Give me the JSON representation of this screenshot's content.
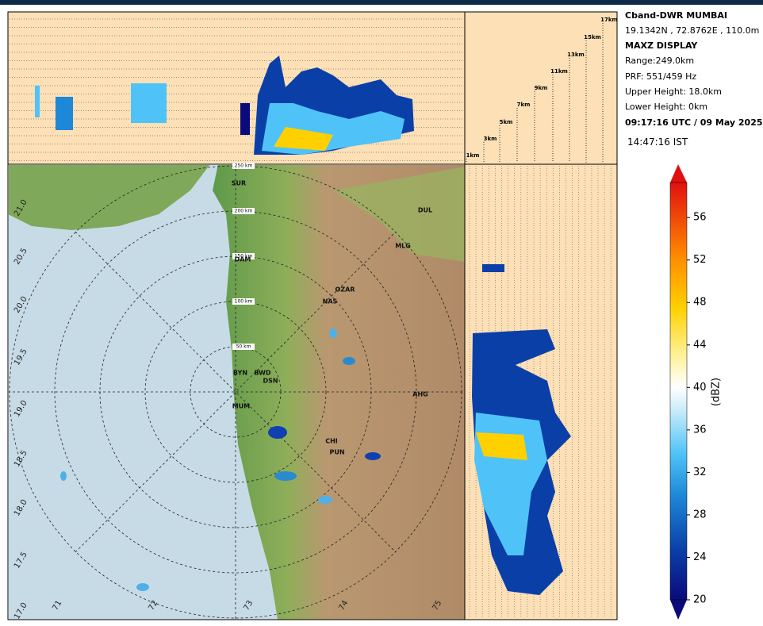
{
  "header": {
    "station": "Cband-DWR MUMBAI",
    "location": "19.1342N , 72.8762E , 110.0m",
    "product": "MAXZ DISPLAY",
    "range": "Range:249.0km",
    "prf": "PRF: 551/459 Hz",
    "upper": "Upper Height: 18.0km",
    "lower": "Lower Height: 0km",
    "utc": "09:17:16 UTC / 09 May 2025",
    "ist": "14:47:16  IST"
  },
  "colorbar": {
    "label": "(dBZ)",
    "lim": [
      20,
      59.3
    ],
    "ticks": [
      20,
      24,
      28,
      32,
      36,
      40,
      44,
      48,
      52,
      56
    ]
  },
  "heights": [
    "1km",
    "3km",
    "5km",
    "7km",
    "9km",
    "11km",
    "13km",
    "15km",
    "17km"
  ],
  "rings": [
    "50 km",
    "100 km",
    "150 km",
    "200 km",
    "250 km"
  ],
  "lats": [
    "21.0",
    "20.5",
    "20.0",
    "19.5",
    "19.0",
    "18.5",
    "18.0",
    "17.5",
    "17.0"
  ],
  "lons": [
    "71",
    "72",
    "73",
    "74",
    "75"
  ],
  "cities": [
    "SUR",
    "DUL",
    "MLG",
    "DAM",
    "OZAR",
    "NAS",
    "BYN",
    "BWD",
    "DSN",
    "AHG",
    "CHI",
    "PUN",
    "MUM"
  ]
}
